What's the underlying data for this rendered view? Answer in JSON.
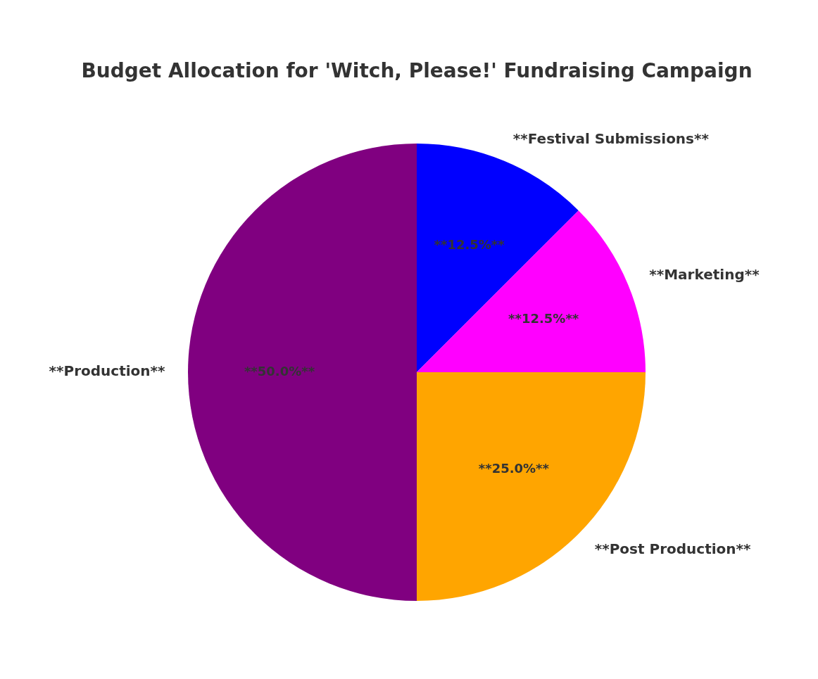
{
  "chart_data": {
    "type": "pie",
    "title": "Budget Allocation for 'Witch, Please!' Fundraising Campaign",
    "categories": [
      "**Festival Submissions**",
      "**Marketing**",
      "**Post Production**",
      "**Production**"
    ],
    "values": [
      12.5,
      12.5,
      25,
      50
    ],
    "colors": [
      "#0000ff",
      "#ff00ff",
      "#ffa500",
      "#800080"
    ],
    "value_labels": [
      "**12.5%**",
      "**12.5%**",
      "**25.0%**",
      "**50.0%**"
    ]
  }
}
